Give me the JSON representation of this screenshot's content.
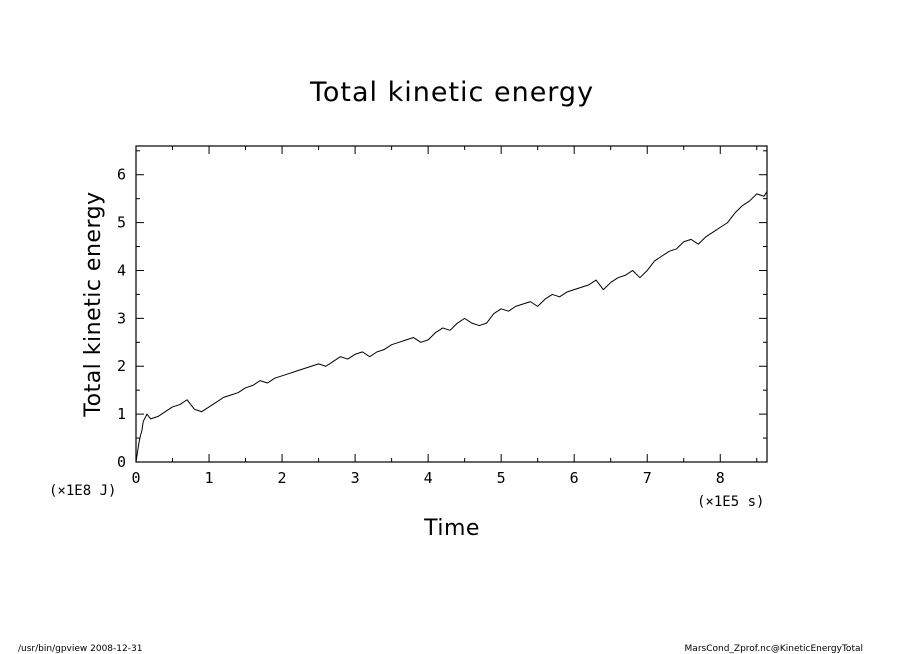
{
  "chart_data": {
    "type": "line",
    "title": "Total kinetic energy",
    "xlabel": "Time",
    "ylabel": "Total kinetic energy",
    "x_scale_label": "(×1E5 s)",
    "y_scale_label": "(×1E8 J)",
    "xlim": [
      0,
      8.64
    ],
    "ylim": [
      0,
      6.6
    ],
    "x_ticks": [
      0,
      1,
      2,
      3,
      4,
      5,
      6,
      7,
      8
    ],
    "x_tick_labels": [
      "0",
      "1",
      "2",
      "3",
      "4",
      "5",
      "6",
      "7",
      "8"
    ],
    "y_ticks": [
      0,
      1,
      2,
      3,
      4,
      5,
      6
    ],
    "y_tick_labels": [
      "0",
      "1",
      "2",
      "3",
      "4",
      "5",
      "6"
    ],
    "grid": false,
    "series": [
      {
        "color": "#000000",
        "x": [
          0,
          0.02,
          0.04,
          0.06,
          0.08,
          0.1,
          0.15,
          0.2,
          0.3,
          0.4,
          0.5,
          0.6,
          0.7,
          0.8,
          0.9,
          1.0,
          1.1,
          1.2,
          1.3,
          1.4,
          1.5,
          1.6,
          1.7,
          1.8,
          1.9,
          2.0,
          2.1,
          2.2,
          2.3,
          2.4,
          2.5,
          2.6,
          2.7,
          2.8,
          2.9,
          3.0,
          3.1,
          3.2,
          3.3,
          3.4,
          3.5,
          3.6,
          3.7,
          3.8,
          3.9,
          4.0,
          4.1,
          4.2,
          4.3,
          4.4,
          4.5,
          4.6,
          4.7,
          4.8,
          4.9,
          5.0,
          5.1,
          5.2,
          5.3,
          5.4,
          5.5,
          5.6,
          5.7,
          5.8,
          5.9,
          6.0,
          6.1,
          6.2,
          6.3,
          6.4,
          6.5,
          6.6,
          6.7,
          6.8,
          6.9,
          7.0,
          7.1,
          7.2,
          7.3,
          7.4,
          7.5,
          7.6,
          7.7,
          7.8,
          7.9,
          8.0,
          8.1,
          8.2,
          8.3,
          8.4,
          8.5,
          8.6,
          8.64
        ],
        "y": [
          0.0,
          0.2,
          0.4,
          0.55,
          0.65,
          0.85,
          1.0,
          0.9,
          0.95,
          1.05,
          1.15,
          1.2,
          1.3,
          1.1,
          1.05,
          1.15,
          1.25,
          1.35,
          1.4,
          1.45,
          1.55,
          1.6,
          1.7,
          1.65,
          1.75,
          1.8,
          1.85,
          1.9,
          1.95,
          2.0,
          2.05,
          2.0,
          2.1,
          2.2,
          2.15,
          2.25,
          2.3,
          2.2,
          2.3,
          2.35,
          2.45,
          2.5,
          2.55,
          2.6,
          2.5,
          2.55,
          2.7,
          2.8,
          2.75,
          2.9,
          3.0,
          2.9,
          2.85,
          2.9,
          3.1,
          3.2,
          3.15,
          3.25,
          3.3,
          3.35,
          3.25,
          3.4,
          3.5,
          3.45,
          3.55,
          3.6,
          3.65,
          3.7,
          3.8,
          3.6,
          3.75,
          3.85,
          3.9,
          4.0,
          3.85,
          4.0,
          4.2,
          4.3,
          4.4,
          4.45,
          4.6,
          4.65,
          4.55,
          4.7,
          4.8,
          4.9,
          5.0,
          5.2,
          5.35,
          5.45,
          5.6,
          5.55,
          5.65
        ]
      }
    ]
  },
  "footer": {
    "left": "/usr/bin/gpview  2008-12-31",
    "right": "MarsCond_Zprof.nc@KineticEnergyTotal"
  }
}
